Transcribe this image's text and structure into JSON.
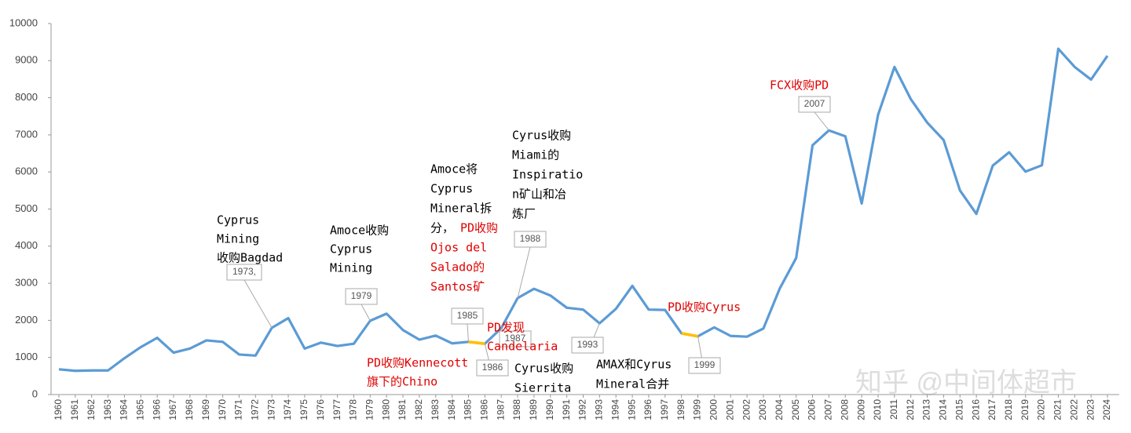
{
  "chart_data": {
    "type": "line",
    "categories": [
      "1960",
      "1961",
      "1962",
      "1963",
      "1964",
      "1965",
      "1966",
      "1967",
      "1968",
      "1969",
      "1970",
      "1971",
      "1972",
      "1973",
      "1974",
      "1975",
      "1976",
      "1977",
      "1978",
      "1979",
      "1980",
      "1981",
      "1982",
      "1983",
      "1984",
      "1985",
      "1986",
      "1987",
      "1988",
      "1989",
      "1990",
      "1991",
      "1992",
      "1993",
      "1994",
      "1995",
      "1996",
      "1997",
      "1998",
      "1999",
      "2000",
      "2001",
      "2002",
      "2003",
      "2004",
      "2005",
      "2006",
      "2007",
      "2008",
      "2009",
      "2010",
      "2011",
      "2012",
      "2013",
      "2014",
      "2015",
      "2016",
      "2017",
      "2018",
      "2019",
      "2020",
      "2021",
      "2022",
      "2023",
      "2024"
    ],
    "series": [
      {
        "color": "#5b9bd5",
        "values": [
          680,
          640,
          650,
          650,
          980,
          1280,
          1530,
          1130,
          1240,
          1460,
          1420,
          1080,
          1050,
          1800,
          2060,
          1240,
          1400,
          1310,
          1370,
          1990,
          2180,
          1740,
          1480,
          1590,
          1380,
          1420,
          1370,
          1790,
          2600,
          2850,
          2670,
          2340,
          2290,
          1920,
          2310,
          2930,
          2290,
          2280,
          1650,
          1570,
          1810,
          1580,
          1560,
          1780,
          2860,
          3680,
          6720,
          7120,
          6960,
          5150,
          7540,
          8830,
          7960,
          7330,
          6860,
          5500,
          4870,
          6170,
          6530,
          6010,
          6180,
          9320,
          8830,
          8490,
          9130
        ]
      }
    ],
    "highlights": [
      {
        "from": "1985",
        "to": "1986",
        "color": "#ffc000"
      },
      {
        "from": "1998",
        "to": "1999",
        "color": "#ffc000"
      }
    ],
    "ylim": [
      0,
      10000
    ],
    "yticks": [
      0,
      1000,
      2000,
      3000,
      4000,
      5000,
      6000,
      7000,
      8000,
      9000,
      10000
    ],
    "callouts": [
      "1973,",
      "1979",
      "1985",
      "1986",
      "1987",
      "1988",
      "1993",
      "1999",
      "2007"
    ],
    "notes": [
      {
        "color": "#000000",
        "lines": [
          "Cyprus",
          "Mining",
          "收购Bagdad"
        ]
      },
      {
        "color": "#000000",
        "lines": [
          "Amoce收购",
          "Cyprus",
          "Mining"
        ]
      },
      {
        "color": "#000000",
        "lines": [
          "Amoce将",
          "Cyprus",
          "Mineral拆",
          "分，"
        ]
      },
      {
        "color": "#e00000",
        "lines": [
          "PD收购",
          "Ojos del",
          "Salado的",
          "Santos矿"
        ]
      },
      {
        "color": "#000000",
        "lines": [
          "Cyrus收购",
          "Miami的",
          "Inspiratio",
          "n矿山和冶",
          "炼厂"
        ]
      },
      {
        "color": "#e00000",
        "lines": [
          "PD发现",
          "Candelaria"
        ]
      },
      {
        "color": "#e00000",
        "lines": [
          "PD收购Kennecott",
          "旗下的Chino"
        ]
      },
      {
        "color": "#000000",
        "lines": [
          "Cyrus收购",
          "Sierrita"
        ]
      },
      {
        "color": "#000000",
        "lines": [
          "AMAX和Cyrus",
          "Mineral合并"
        ]
      },
      {
        "color": "#e00000",
        "lines": [
          "PD收购Cyrus"
        ]
      },
      {
        "color": "#e00000",
        "lines": [
          "FCX收购PD"
        ]
      }
    ],
    "watermark": "知乎 @中间体超市"
  }
}
